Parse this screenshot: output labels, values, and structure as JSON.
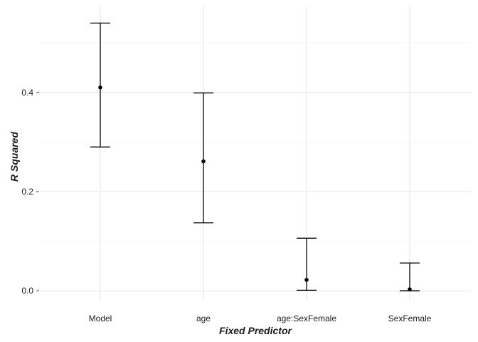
{
  "chart_data": {
    "type": "errorbar",
    "xlabel": "Fixed Predictor",
    "ylabel": "R Squared",
    "categories": [
      "Model",
      "age",
      "age:SexFemale",
      "SexFemale"
    ],
    "series": [
      {
        "values": [
          0.41,
          0.261,
          0.022,
          0.003
        ],
        "lower": [
          0.29,
          0.137,
          0.001,
          0.0
        ],
        "upper": [
          0.54,
          0.399,
          0.106,
          0.056
        ]
      }
    ],
    "ylim": [
      -0.02,
      0.575
    ],
    "yticks": [
      0.0,
      0.2,
      0.4
    ],
    "ytick_labels": [
      "0.0",
      "0.2",
      "0.4"
    ],
    "grid": true,
    "legend": "none",
    "colors": {
      "marks": "#000000",
      "grid": "#e6e6e6"
    }
  }
}
